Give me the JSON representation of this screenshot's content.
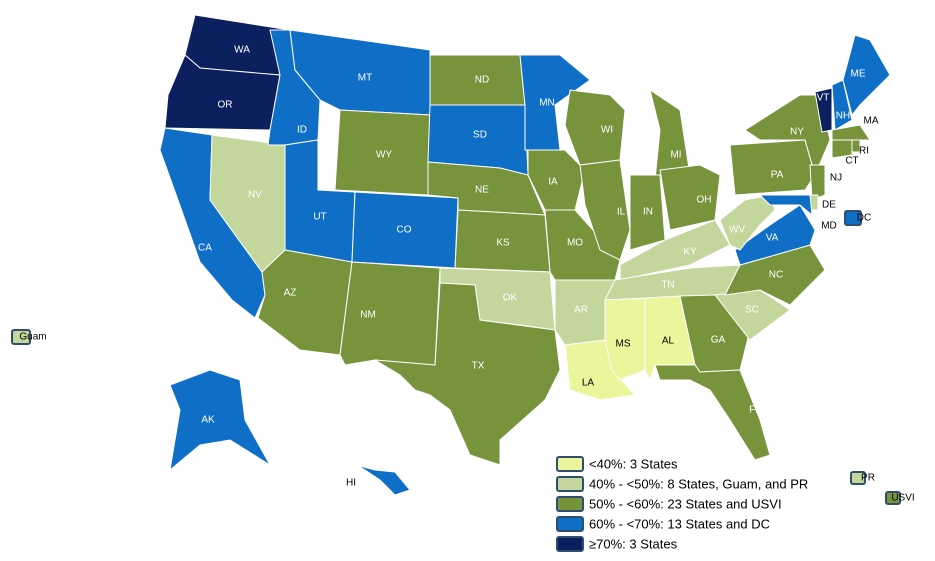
{
  "states": [
    {
      "label": "WA",
      "color": "#0c1f5e"
    },
    {
      "label": "OR",
      "color": "#0c1f5e"
    },
    {
      "label": "CA",
      "color": "#0f6ec6"
    },
    {
      "label": "NV",
      "color": "#c3d69b"
    },
    {
      "label": "ID",
      "color": "#0f6ec6"
    },
    {
      "label": "MT",
      "color": "#0f6ec6"
    },
    {
      "label": "WY",
      "color": "#77933c"
    },
    {
      "label": "UT",
      "color": "#0f6ec6"
    },
    {
      "label": "CO",
      "color": "#0f6ec6"
    },
    {
      "label": "AZ",
      "color": "#77933c"
    },
    {
      "label": "NM",
      "color": "#77933c"
    },
    {
      "label": "ND",
      "color": "#77933c"
    },
    {
      "label": "SD",
      "color": "#0f6ec6"
    },
    {
      "label": "NE",
      "color": "#77933c"
    },
    {
      "label": "KS",
      "color": "#77933c"
    },
    {
      "label": "OK",
      "color": "#c3d69b"
    },
    {
      "label": "TX",
      "color": "#77933c"
    },
    {
      "label": "MN",
      "color": "#0f6ec6"
    },
    {
      "label": "IA",
      "color": "#77933c"
    },
    {
      "label": "MO",
      "color": "#77933c"
    },
    {
      "label": "AR",
      "color": "#c3d69b"
    },
    {
      "label": "LA",
      "color": "#ebf59c"
    },
    {
      "label": "WI",
      "color": "#77933c"
    },
    {
      "label": "IL",
      "color": "#77933c"
    },
    {
      "label": "MI",
      "color": "#77933c"
    },
    {
      "label": "IN",
      "color": "#77933c"
    },
    {
      "label": "OH",
      "color": "#77933c"
    },
    {
      "label": "KY",
      "color": "#c3d69b"
    },
    {
      "label": "TN",
      "color": "#c3d69b"
    },
    {
      "label": "MS",
      "color": "#ebf59c"
    },
    {
      "label": "AL",
      "color": "#ebf59c"
    },
    {
      "label": "GA",
      "color": "#77933c"
    },
    {
      "label": "FL",
      "color": "#77933c"
    },
    {
      "label": "SC",
      "color": "#c3d69b"
    },
    {
      "label": "NC",
      "color": "#77933c"
    },
    {
      "label": "VA",
      "color": "#0f6ec6"
    },
    {
      "label": "WV",
      "color": "#c3d69b"
    },
    {
      "label": "PA",
      "color": "#77933c"
    },
    {
      "label": "NY",
      "color": "#77933c"
    },
    {
      "label": "NJ",
      "color": "#77933c"
    },
    {
      "label": "DE",
      "color": "#c3d69b"
    },
    {
      "label": "MD",
      "color": "#0f6ec6"
    },
    {
      "label": "VT",
      "color": "#0c1f5e"
    },
    {
      "label": "NH",
      "color": "#0f6ec6"
    },
    {
      "label": "ME",
      "color": "#0f6ec6"
    },
    {
      "label": "MA",
      "color": "#77933c"
    },
    {
      "label": "CT",
      "color": "#77933c"
    },
    {
      "label": "RI",
      "color": "#77933c"
    },
    {
      "label": "AK",
      "color": "#0f6ec6"
    },
    {
      "label": "HI",
      "color": "#0f6ec6"
    }
  ],
  "territories": [
    {
      "label": "Guam",
      "color": "#c3d69b"
    },
    {
      "label": "DC",
      "color": "#0f6ec6"
    },
    {
      "label": "PR",
      "color": "#c3d69b"
    },
    {
      "label": "USVI",
      "color": "#77933c"
    }
  ],
  "legend": [
    {
      "label": "<40%: 3 States",
      "color": "#ebf59c"
    },
    {
      "label": "40% - <50%: 8 States, Guam, and PR",
      "color": "#c3d69b"
    },
    {
      "label": "50% - <60%: 23 States and USVI",
      "color": "#77933c"
    },
    {
      "label": "60% - <70%: 13 States and DC",
      "color": "#0f6ec6"
    },
    {
      "label": "≥70%: 3 States",
      "color": "#0c1f5e"
    }
  ]
}
